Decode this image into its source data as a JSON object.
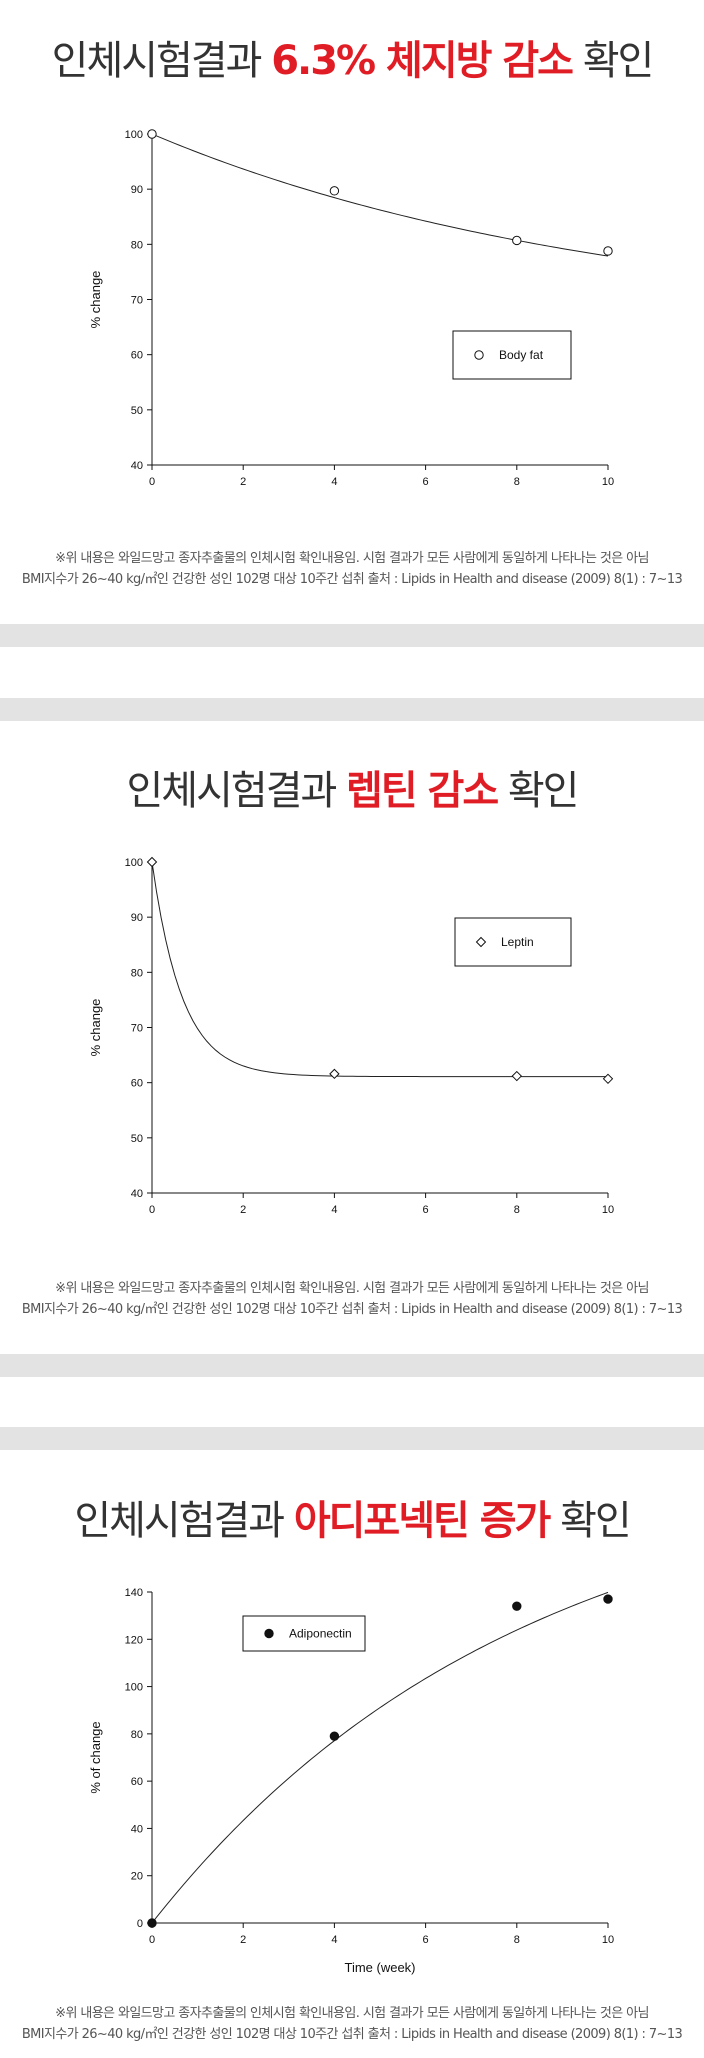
{
  "sections": [
    {
      "headline_prefix": "인체시험결과 ",
      "headline_highlight": "6.3% 체지방 감소",
      "headline_suffix": " 확인"
    },
    {
      "headline_prefix": "인체시험결과 ",
      "headline_highlight": "렙틴 감소",
      "headline_suffix": " 확인"
    },
    {
      "headline_prefix": "인체시험결과 ",
      "headline_highlight": "아디포넥틴 증가",
      "headline_suffix": " 확인"
    }
  ],
  "notes": {
    "line1": "※위 내용은 와일드망고 종자추출물의 인체시험 확인내용임. 시험 결과가 모든 사람에게 동일하게 나타나는 것은 아님",
    "line2": "BMI지수가 26~40 kg/㎡인 건강한 성인 102명 대상 10주간 섭취  출처 : Lipids in Health and disease (2009) 8(1) : 7~13"
  },
  "colors": {
    "highlight": "#e01d25",
    "band": "#e3e3e3"
  },
  "chart_data": [
    {
      "type": "scatter",
      "title": "",
      "xlabel": "",
      "ylabel": "% change",
      "xlim": [
        0,
        10
      ],
      "ylim": [
        40,
        100
      ],
      "xticks": [
        0,
        2,
        4,
        6,
        8,
        10
      ],
      "yticks": [
        40,
        50,
        60,
        70,
        80,
        90,
        100
      ],
      "legend_position": "center-right",
      "series": [
        {
          "name": "Body fat",
          "marker": "open-circle",
          "x": [
            0,
            4,
            8,
            10
          ],
          "y": [
            100,
            89.7,
            80.7,
            78.8
          ]
        }
      ],
      "fit_curve": {
        "type": "exponential-decay",
        "a": 35.0,
        "b": 0.1,
        "c": 65.0
      }
    },
    {
      "type": "scatter",
      "title": "",
      "xlabel": "",
      "ylabel": "% change",
      "xlim": [
        0,
        10
      ],
      "ylim": [
        40,
        100
      ],
      "xticks": [
        0,
        2,
        4,
        6,
        8,
        10
      ],
      "yticks": [
        40,
        50,
        60,
        70,
        80,
        90,
        100
      ],
      "legend_position": "top-right",
      "series": [
        {
          "name": "Leptin",
          "marker": "open-diamond",
          "x": [
            0,
            4,
            8,
            10
          ],
          "y": [
            100,
            61.6,
            61.2,
            60.7
          ]
        }
      ],
      "fit_curve": {
        "type": "exponential-decay",
        "a": 38.9,
        "b": 1.5,
        "c": 61.1
      }
    },
    {
      "type": "scatter",
      "title": "",
      "xlabel": "Time (week)",
      "ylabel": "% of change",
      "xlim": [
        0,
        10
      ],
      "ylim": [
        0,
        140
      ],
      "xticks": [
        0,
        2,
        4,
        6,
        8,
        10
      ],
      "yticks": [
        0,
        20,
        40,
        60,
        80,
        100,
        120,
        140
      ],
      "legend_position": "top-left",
      "series": [
        {
          "name": "Adiponectin",
          "marker": "filled-circle",
          "x": [
            0,
            4,
            8,
            10
          ],
          "y": [
            0,
            79,
            134,
            137
          ]
        }
      ],
      "fit_curve": {
        "type": "exponential-rise",
        "a": 196.0,
        "b": 0.125,
        "c": 0
      }
    }
  ]
}
